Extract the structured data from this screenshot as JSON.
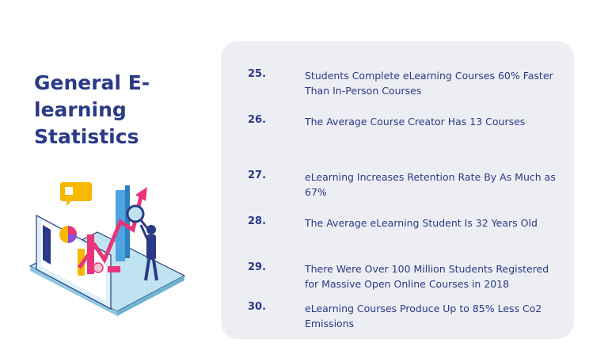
{
  "title": "General E-learning Statistics",
  "illustration": "elearning-analytics-laptop-illustration",
  "stats": [
    {
      "number": "25.",
      "text": "Students Complete eLearning Courses 60% Faster Than In-Person Courses"
    },
    {
      "number": "26.",
      "text": "The Average Course Creator Has 13 Courses"
    },
    {
      "number": "27.",
      "text": "eLearning Increases Retention Rate By As Much as 67%"
    },
    {
      "number": "28.",
      "text": "The Average eLearning Student Is 32 Years Old"
    },
    {
      "number": "29.",
      "text": "There Were Over 100 Million Students Registered for Massive Open Online Courses in 2018"
    },
    {
      "number": "30.",
      "text": "eLearning Courses Produce Up to 85% Less Co2 Emissions"
    }
  ],
  "colors": {
    "heading": "#2b3a86",
    "panel": "#eceef3",
    "accent_pink": "#e8347a",
    "accent_blue": "#4fa3e0",
    "accent_yellow": "#f6b800"
  }
}
